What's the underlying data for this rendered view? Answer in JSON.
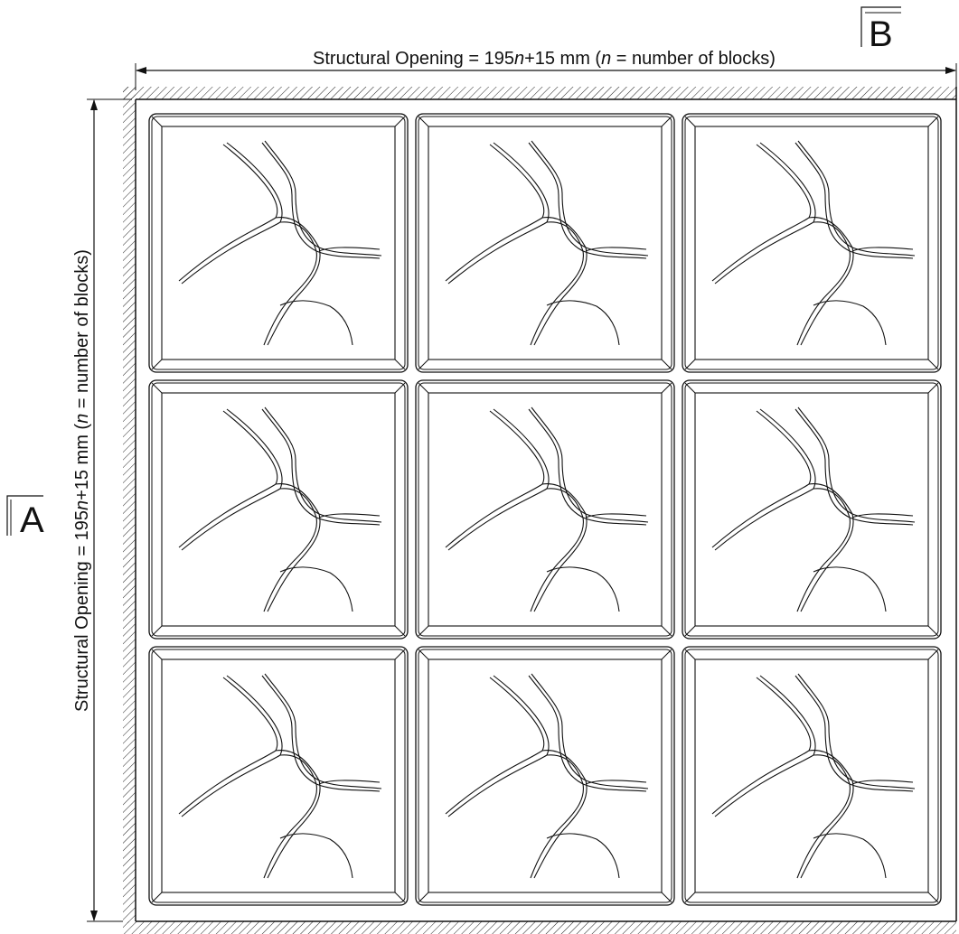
{
  "dimensions": {
    "horizontal": {
      "prefix": "Structural Opening = 195",
      "var1": "n",
      "middle": "+15 mm (",
      "var2": "n",
      "suffix": " = number of blocks)"
    },
    "vertical": {
      "prefix": "Structural Opening = 195",
      "var1": "n",
      "middle": "+15 mm (",
      "var2": "n",
      "suffix": " = number of blocks)"
    }
  },
  "section_markers": {
    "a": "A",
    "b": "B"
  },
  "grid": {
    "rows": 3,
    "columns": 3
  },
  "colors": {
    "line": "#111111",
    "background": "#ffffff"
  }
}
